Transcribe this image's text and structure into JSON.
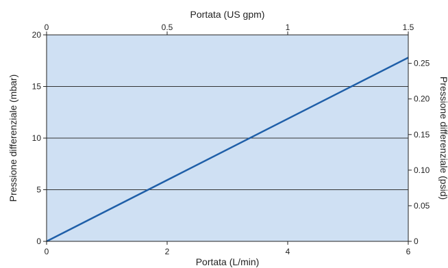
{
  "chart_data": {
    "type": "line",
    "colors": {
      "plot_background": "#cfe0f3",
      "line": "#1f5fa8",
      "gridline": "#333333",
      "axis": "#222222"
    },
    "grid": true,
    "x_bottom": {
      "label": "Portata (L/min)",
      "range": [
        0,
        6
      ],
      "ticks": [
        0,
        2,
        4,
        6
      ]
    },
    "x_top": {
      "label": "Portata (US gpm)",
      "range": [
        0,
        1.5
      ],
      "ticks": [
        0,
        0.5,
        1,
        1.5
      ],
      "tick_labels": [
        "0",
        "0.5",
        "1",
        "1.5"
      ]
    },
    "y_left": {
      "label": "Pressione differenziale (mbar)",
      "range": [
        0,
        20
      ],
      "ticks": [
        0,
        5,
        10,
        15,
        20
      ]
    },
    "y_right": {
      "label": "Pressione differenziale (psid)",
      "range": [
        0,
        0.29
      ],
      "ticks": [
        0,
        0.05,
        0.1,
        0.15,
        0.2,
        0.25
      ],
      "tick_labels": [
        "0",
        "0.05",
        "0.10",
        "0.15",
        "0.20",
        "0.25"
      ]
    },
    "series": [
      {
        "x": [
          0,
          6
        ],
        "y": [
          0,
          17.8
        ]
      }
    ]
  }
}
